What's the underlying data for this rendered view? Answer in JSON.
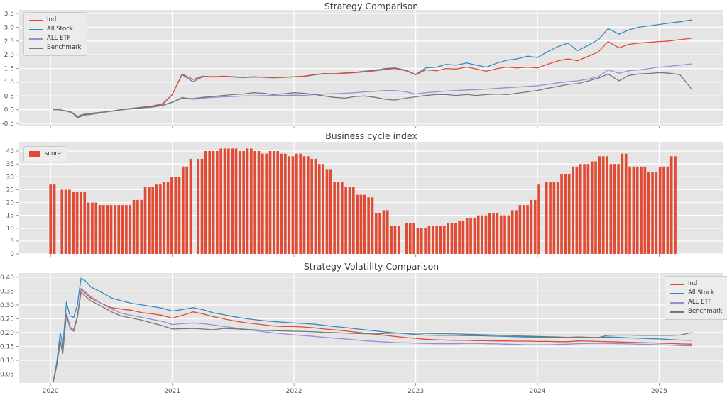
{
  "figure": {
    "colors": {
      "background": "#ffffff",
      "panel": "#e5e5e5",
      "grid": "#ffffff",
      "tick_mark": "#999999",
      "tick_label": "#555555",
      "title": "#3a3a3a",
      "legend_bg": "#ececec",
      "legend_border": "#cccccc",
      "legend_text": "#333333",
      "red": "#E24A33",
      "blue": "#348ABD",
      "purple": "#988ED5",
      "gray": "#777777"
    }
  },
  "chart_data": [
    {
      "type": "line",
      "title": "Strategy Comparison",
      "legend": {
        "position": "top-left",
        "labels": [
          "Ind",
          "All Stock",
          "ALL ETF",
          "Benchmark"
        ]
      },
      "xlim": [
        2019.742,
        2025.528
      ],
      "ylim": [
        -0.575,
        3.63
      ],
      "xticks": [
        2020,
        2021,
        2022,
        2023,
        2024,
        2025
      ],
      "show_xtick_labels": false,
      "ytick_vals": [
        -0.5,
        0.0,
        0.5,
        1.0,
        1.5,
        2.0,
        2.5,
        3.0,
        3.5
      ],
      "ytick_labels": [
        "-0.5",
        "0.0",
        "0.5",
        "1.0",
        "1.5",
        "2.0",
        "2.5",
        "3.0",
        "3.5"
      ],
      "x": [
        2020.02,
        2020.05,
        2020.08,
        2020.1,
        2020.13,
        2020.16,
        2020.19,
        2020.22,
        2020.25,
        2020.29,
        2020.33,
        2020.42,
        2020.5,
        2020.58,
        2020.67,
        2020.75,
        2020.83,
        2020.92,
        2021.0,
        2021.08,
        2021.17,
        2021.25,
        2021.33,
        2021.42,
        2021.5,
        2021.58,
        2021.67,
        2021.75,
        2021.83,
        2021.92,
        2022.0,
        2022.08,
        2022.17,
        2022.25,
        2022.33,
        2022.42,
        2022.5,
        2022.58,
        2022.67,
        2022.75,
        2022.83,
        2022.92,
        2023.0,
        2023.08,
        2023.17,
        2023.25,
        2023.33,
        2023.42,
        2023.5,
        2023.58,
        2023.67,
        2023.75,
        2023.83,
        2023.92,
        2024.0,
        2024.08,
        2024.17,
        2024.25,
        2024.33,
        2024.42,
        2024.5,
        2024.58,
        2024.67,
        2024.75,
        2024.83,
        2024.92,
        2025.0,
        2025.08,
        2025.17,
        2025.27
      ],
      "series": [
        {
          "name": "Ind",
          "color": "#E24A33",
          "values": [
            0.0,
            0.01,
            0.0,
            -0.02,
            -0.05,
            -0.08,
            -0.15,
            -0.28,
            -0.22,
            -0.18,
            -0.15,
            -0.1,
            -0.05,
            0.0,
            0.05,
            0.08,
            0.12,
            0.2,
            0.55,
            1.3,
            1.1,
            1.22,
            1.2,
            1.22,
            1.2,
            1.18,
            1.2,
            1.18,
            1.17,
            1.18,
            1.2,
            1.22,
            1.28,
            1.32,
            1.3,
            1.33,
            1.35,
            1.38,
            1.42,
            1.47,
            1.5,
            1.42,
            1.27,
            1.45,
            1.42,
            1.5,
            1.48,
            1.55,
            1.48,
            1.4,
            1.5,
            1.55,
            1.52,
            1.55,
            1.52,
            1.65,
            1.78,
            1.85,
            1.78,
            1.95,
            2.1,
            2.48,
            2.25,
            2.38,
            2.42,
            2.45,
            2.48,
            2.5,
            2.55,
            2.6
          ]
        },
        {
          "name": "All Stock",
          "color": "#348ABD",
          "values": [
            0.0,
            0.01,
            0.0,
            -0.02,
            -0.05,
            -0.09,
            -0.16,
            -0.3,
            -0.24,
            -0.19,
            -0.17,
            -0.11,
            -0.05,
            0.0,
            0.05,
            0.09,
            0.13,
            0.22,
            0.55,
            1.28,
            1.02,
            1.2,
            1.19,
            1.21,
            1.19,
            1.17,
            1.19,
            1.18,
            1.16,
            1.18,
            1.2,
            1.21,
            1.27,
            1.31,
            1.31,
            1.34,
            1.36,
            1.4,
            1.44,
            1.5,
            1.52,
            1.44,
            1.28,
            1.52,
            1.55,
            1.65,
            1.62,
            1.7,
            1.62,
            1.55,
            1.7,
            1.8,
            1.85,
            1.95,
            1.9,
            2.1,
            2.3,
            2.42,
            2.15,
            2.35,
            2.55,
            2.95,
            2.75,
            2.9,
            3.0,
            3.05,
            3.1,
            3.15,
            3.2,
            3.27
          ]
        },
        {
          "name": "ALL ETF",
          "color": "#988ED5",
          "values": [
            0.0,
            0.01,
            0.0,
            -0.02,
            -0.04,
            -0.08,
            -0.14,
            -0.26,
            -0.2,
            -0.16,
            -0.14,
            -0.1,
            -0.06,
            -0.01,
            0.03,
            0.06,
            0.09,
            0.15,
            0.28,
            0.45,
            0.38,
            0.42,
            0.45,
            0.47,
            0.48,
            0.5,
            0.5,
            0.51,
            0.52,
            0.52,
            0.53,
            0.52,
            0.55,
            0.57,
            0.58,
            0.6,
            0.62,
            0.65,
            0.67,
            0.7,
            0.7,
            0.65,
            0.57,
            0.62,
            0.65,
            0.68,
            0.7,
            0.72,
            0.73,
            0.75,
            0.78,
            0.8,
            0.82,
            0.85,
            0.87,
            0.92,
            0.98,
            1.02,
            1.05,
            1.12,
            1.2,
            1.45,
            1.33,
            1.42,
            1.45,
            1.5,
            1.55,
            1.58,
            1.62,
            1.67
          ]
        },
        {
          "name": "Benchmark",
          "color": "#777777",
          "values": [
            0.0,
            0.01,
            0.0,
            -0.02,
            -0.04,
            -0.07,
            -0.13,
            -0.25,
            -0.19,
            -0.15,
            -0.13,
            -0.09,
            -0.05,
            0.0,
            0.04,
            0.07,
            0.1,
            0.16,
            0.27,
            0.42,
            0.4,
            0.45,
            0.48,
            0.52,
            0.55,
            0.57,
            0.62,
            0.6,
            0.55,
            0.58,
            0.62,
            0.6,
            0.55,
            0.5,
            0.45,
            0.42,
            0.48,
            0.5,
            0.45,
            0.38,
            0.35,
            0.42,
            0.47,
            0.52,
            0.55,
            0.55,
            0.52,
            0.55,
            0.52,
            0.55,
            0.57,
            0.55,
            0.6,
            0.65,
            0.7,
            0.78,
            0.85,
            0.92,
            0.95,
            1.05,
            1.15,
            1.3,
            1.05,
            1.25,
            1.3,
            1.32,
            1.35,
            1.33,
            1.28,
            0.73
          ]
        }
      ]
    },
    {
      "type": "bar",
      "title": "Business cycle index",
      "legend": {
        "position": "top-left",
        "labels": [
          "score"
        ]
      },
      "series_name": "score",
      "bar_color": "#E24A33",
      "xlim": [
        2019.742,
        2025.528
      ],
      "ylim": [
        0,
        43.6
      ],
      "xticks": [
        2020,
        2021,
        2022,
        2023,
        2024,
        2025
      ],
      "show_xtick_labels": false,
      "ytick_vals": [
        0,
        5,
        10,
        15,
        20,
        25,
        30,
        35,
        40
      ],
      "ytick_labels": [
        "0",
        "5",
        "10",
        "15",
        "20",
        "25",
        "30",
        "35",
        "40"
      ],
      "x_start": 2020.0,
      "x_step": 0.0311,
      "values": [
        27,
        27,
        null,
        25,
        25,
        25,
        24,
        24,
        24,
        24,
        20,
        20,
        20,
        19,
        19,
        19,
        19,
        19,
        19,
        19,
        19,
        19,
        21,
        21,
        21,
        26,
        26,
        26,
        27,
        27,
        28,
        28,
        30,
        30,
        30,
        34,
        34,
        37,
        null,
        37,
        37,
        40,
        40,
        40,
        40,
        41,
        41,
        41,
        41,
        41,
        40,
        40,
        41,
        41,
        40,
        40,
        39,
        39,
        40,
        40,
        40,
        39,
        39,
        38,
        38,
        39,
        39,
        38,
        38,
        37,
        37,
        35,
        35,
        33,
        33,
        28,
        28,
        28,
        26,
        26,
        26,
        23,
        23,
        23,
        22,
        22,
        16,
        16,
        17,
        17,
        11,
        11,
        11,
        null,
        12,
        12,
        12,
        10,
        10,
        10,
        11,
        11,
        11,
        11,
        11,
        12,
        12,
        12,
        13,
        13,
        14,
        14,
        14,
        15,
        15,
        15,
        16,
        16,
        16,
        15,
        15,
        15,
        17,
        17,
        19,
        19,
        19,
        21,
        21,
        27,
        null,
        28,
        28,
        28,
        28,
        31,
        31,
        31,
        34,
        34,
        35,
        35,
        35,
        36,
        36,
        38,
        38,
        38,
        35,
        35,
        35,
        39,
        39,
        34,
        34,
        34,
        34,
        34,
        32,
        32,
        32,
        34,
        34,
        34,
        38,
        38
      ]
    },
    {
      "type": "line",
      "title": "Strategy Volatility Comparison",
      "legend": {
        "position": "top-right",
        "labels": [
          "Ind",
          "All Stock",
          "ALL ETF",
          "Benchmark"
        ]
      },
      "xlim": [
        2019.742,
        2025.528
      ],
      "ylim": [
        0.018,
        0.415
      ],
      "xticks": [
        2020,
        2021,
        2022,
        2023,
        2024,
        2025
      ],
      "show_xtick_labels": true,
      "xtick_labels": [
        "2020",
        "2021",
        "2022",
        "2023",
        "2024",
        "2025"
      ],
      "ytick_vals": [
        0.05,
        0.1,
        0.15,
        0.2,
        0.25,
        0.3,
        0.35,
        0.4
      ],
      "ytick_labels": [
        "0.05",
        "0.10",
        "0.15",
        "0.20",
        "0.25",
        "0.30",
        "0.35",
        "0.40"
      ],
      "x": [
        2020.02,
        2020.05,
        2020.08,
        2020.1,
        2020.13,
        2020.16,
        2020.19,
        2020.22,
        2020.25,
        2020.29,
        2020.33,
        2020.42,
        2020.5,
        2020.58,
        2020.67,
        2020.75,
        2020.83,
        2020.92,
        2021.0,
        2021.08,
        2021.17,
        2021.25,
        2021.33,
        2021.42,
        2021.5,
        2021.58,
        2021.67,
        2021.75,
        2021.83,
        2021.92,
        2022.0,
        2022.08,
        2022.17,
        2022.25,
        2022.33,
        2022.42,
        2022.5,
        2022.58,
        2022.67,
        2022.75,
        2022.83,
        2022.92,
        2023.0,
        2023.08,
        2023.17,
        2023.25,
        2023.33,
        2023.42,
        2023.5,
        2023.58,
        2023.67,
        2023.75,
        2023.83,
        2023.92,
        2024.0,
        2024.08,
        2024.17,
        2024.25,
        2024.33,
        2024.42,
        2024.5,
        2024.58,
        2024.67,
        2024.75,
        2024.83,
        2024.92,
        2025.0,
        2025.08,
        2025.17,
        2025.27
      ],
      "series": [
        {
          "name": "Ind",
          "color": "#E24A33",
          "values": [
            0.02,
            0.08,
            0.17,
            0.13,
            0.27,
            0.22,
            0.21,
            0.26,
            0.355,
            0.34,
            0.325,
            0.305,
            0.29,
            0.285,
            0.28,
            0.272,
            0.268,
            0.262,
            0.252,
            0.262,
            0.275,
            0.268,
            0.258,
            0.25,
            0.243,
            0.237,
            0.232,
            0.228,
            0.224,
            0.222,
            0.222,
            0.22,
            0.217,
            0.213,
            0.21,
            0.206,
            0.202,
            0.198,
            0.194,
            0.19,
            0.186,
            0.182,
            0.179,
            0.176,
            0.174,
            0.173,
            0.172,
            0.172,
            0.171,
            0.171,
            0.17,
            0.17,
            0.169,
            0.169,
            0.168,
            0.168,
            0.167,
            0.167,
            0.17,
            0.169,
            0.168,
            0.167,
            0.166,
            0.165,
            0.164,
            0.163,
            0.162,
            0.161,
            0.159,
            0.158
          ]
        },
        {
          "name": "All Stock",
          "color": "#348ABD",
          "values": [
            0.02,
            0.09,
            0.2,
            0.15,
            0.31,
            0.26,
            0.255,
            0.3,
            0.397,
            0.385,
            0.365,
            0.345,
            0.325,
            0.315,
            0.305,
            0.3,
            0.295,
            0.288,
            0.278,
            0.283,
            0.29,
            0.283,
            0.272,
            0.265,
            0.258,
            0.252,
            0.247,
            0.243,
            0.24,
            0.237,
            0.235,
            0.233,
            0.23,
            0.226,
            0.222,
            0.218,
            0.214,
            0.21,
            0.206,
            0.202,
            0.199,
            0.196,
            0.193,
            0.191,
            0.19,
            0.19,
            0.19,
            0.189,
            0.189,
            0.188,
            0.187,
            0.186,
            0.185,
            0.184,
            0.184,
            0.183,
            0.182,
            0.182,
            0.184,
            0.183,
            0.182,
            0.184,
            0.183,
            0.181,
            0.18,
            0.178,
            0.177,
            0.175,
            0.173,
            0.172
          ]
        },
        {
          "name": "ALL ETF",
          "color": "#988ED5",
          "values": [
            0.02,
            0.08,
            0.17,
            0.13,
            0.27,
            0.22,
            0.21,
            0.26,
            0.36,
            0.345,
            0.33,
            0.305,
            0.285,
            0.27,
            0.262,
            0.255,
            0.248,
            0.24,
            0.229,
            0.232,
            0.235,
            0.232,
            0.228,
            0.222,
            0.218,
            0.213,
            0.208,
            0.203,
            0.199,
            0.195,
            0.192,
            0.189,
            0.186,
            0.183,
            0.18,
            0.177,
            0.174,
            0.171,
            0.168,
            0.166,
            0.164,
            0.163,
            0.162,
            0.161,
            0.16,
            0.16,
            0.16,
            0.161,
            0.161,
            0.16,
            0.159,
            0.158,
            0.157,
            0.156,
            0.156,
            0.156,
            0.157,
            0.158,
            0.16,
            0.161,
            0.161,
            0.161,
            0.16,
            0.159,
            0.158,
            0.157,
            0.156,
            0.155,
            0.153,
            0.152
          ]
        },
        {
          "name": "Benchmark",
          "color": "#777777",
          "values": [
            0.02,
            0.08,
            0.165,
            0.125,
            0.265,
            0.215,
            0.205,
            0.255,
            0.345,
            0.33,
            0.315,
            0.295,
            0.275,
            0.26,
            0.252,
            0.245,
            0.235,
            0.225,
            0.213,
            0.214,
            0.215,
            0.213,
            0.21,
            0.215,
            0.214,
            0.212,
            0.21,
            0.208,
            0.207,
            0.206,
            0.205,
            0.204,
            0.203,
            0.201,
            0.2,
            0.198,
            0.197,
            0.196,
            0.195,
            0.197,
            0.198,
            0.198,
            0.198,
            0.197,
            0.196,
            0.196,
            0.195,
            0.194,
            0.193,
            0.192,
            0.191,
            0.19,
            0.188,
            0.187,
            0.186,
            0.185,
            0.184,
            0.183,
            0.184,
            0.183,
            0.182,
            0.19,
            0.191,
            0.191,
            0.19,
            0.19,
            0.19,
            0.19,
            0.191,
            0.2
          ]
        }
      ]
    }
  ]
}
